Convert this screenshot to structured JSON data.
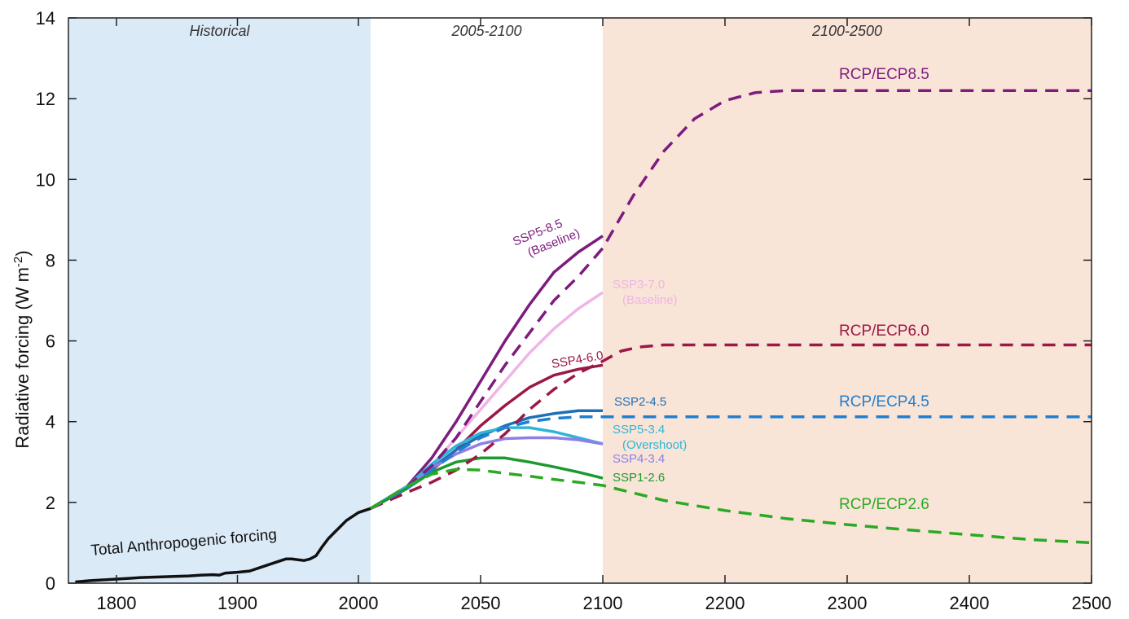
{
  "chart_data": {
    "type": "line",
    "ylabel": "Radiative forcing (W m-2)",
    "ylabel_parts": {
      "main": "Radiative forcing (W m",
      "sup": "-2",
      "close": ")"
    },
    "xlim": [
      1765,
      2500
    ],
    "ylim": [
      0,
      14
    ],
    "x_ticks": [
      "1800",
      "1900",
      "2000",
      "2050",
      "2100",
      "2200",
      "2300",
      "2400",
      "2500"
    ],
    "y_ticks": [
      "0",
      "2",
      "4",
      "6",
      "8",
      "10",
      "12",
      "14"
    ],
    "grid": false,
    "periods": [
      {
        "label": "Historical",
        "x_start": 1765,
        "x_end": 2005,
        "color": "#dbeaf7"
      },
      {
        "label": "2005-2100",
        "x_start": 2005,
        "x_end": 2100,
        "color": "#ffffff"
      },
      {
        "label": "2100-2500",
        "x_start": 2100,
        "x_end": 2500,
        "color": "#f9e4d8"
      }
    ],
    "series": [
      {
        "name": "Total Anthropogenic forcing",
        "style": "solid",
        "color": "#111111",
        "width": 3.5,
        "label_lines": [
          "Total Anthropogenic forcing"
        ],
        "points": [
          [
            1770,
            0.03
          ],
          [
            1780,
            0.06
          ],
          [
            1790,
            0.08
          ],
          [
            1800,
            0.1
          ],
          [
            1810,
            0.12
          ],
          [
            1820,
            0.14
          ],
          [
            1830,
            0.15
          ],
          [
            1840,
            0.16
          ],
          [
            1850,
            0.17
          ],
          [
            1860,
            0.18
          ],
          [
            1870,
            0.2
          ],
          [
            1880,
            0.21
          ],
          [
            1885,
            0.2
          ],
          [
            1890,
            0.25
          ],
          [
            1900,
            0.27
          ],
          [
            1910,
            0.3
          ],
          [
            1920,
            0.4
          ],
          [
            1930,
            0.5
          ],
          [
            1940,
            0.6
          ],
          [
            1945,
            0.6
          ],
          [
            1950,
            0.58
          ],
          [
            1955,
            0.56
          ],
          [
            1960,
            0.6
          ],
          [
            1965,
            0.68
          ],
          [
            1970,
            0.9
          ],
          [
            1975,
            1.1
          ],
          [
            1980,
            1.25
          ],
          [
            1985,
            1.4
          ],
          [
            1990,
            1.55
          ],
          [
            1995,
            1.65
          ],
          [
            2000,
            1.75
          ],
          [
            2005,
            1.85
          ]
        ]
      },
      {
        "name": "SSP5-8.5",
        "style": "solid",
        "color": "#7d1b7e",
        "width": 3.5,
        "label_lines": [
          "SSP5-8.5",
          "(Baseline)"
        ],
        "points": [
          [
            2005,
            1.85
          ],
          [
            2020,
            2.4
          ],
          [
            2030,
            3.1
          ],
          [
            2040,
            4.0
          ],
          [
            2050,
            5.0
          ],
          [
            2060,
            6.0
          ],
          [
            2070,
            6.9
          ],
          [
            2080,
            7.7
          ],
          [
            2090,
            8.2
          ],
          [
            2100,
            8.6
          ]
        ]
      },
      {
        "name": "SSP3-7.0",
        "style": "solid",
        "color": "#f0b4e6",
        "width": 3.5,
        "label_lines": [
          "SSP3-7.0",
          "(Baseline)"
        ],
        "points": [
          [
            2005,
            1.85
          ],
          [
            2020,
            2.35
          ],
          [
            2030,
            2.9
          ],
          [
            2040,
            3.6
          ],
          [
            2050,
            4.3
          ],
          [
            2060,
            5.0
          ],
          [
            2070,
            5.7
          ],
          [
            2080,
            6.3
          ],
          [
            2090,
            6.8
          ],
          [
            2100,
            7.2
          ]
        ]
      },
      {
        "name": "SSP4-6.0",
        "style": "solid",
        "color": "#9c1845",
        "width": 3.5,
        "label_lines": [
          "SSP4-6.0"
        ],
        "points": [
          [
            2005,
            1.85
          ],
          [
            2020,
            2.35
          ],
          [
            2030,
            2.8
          ],
          [
            2040,
            3.3
          ],
          [
            2050,
            3.9
          ],
          [
            2060,
            4.4
          ],
          [
            2070,
            4.85
          ],
          [
            2080,
            5.15
          ],
          [
            2090,
            5.3
          ],
          [
            2100,
            5.4
          ]
        ]
      },
      {
        "name": "SSP2-4.5",
        "style": "solid",
        "color": "#1f6fb6",
        "width": 3.5,
        "label_lines": [
          "SSP2-4.5"
        ],
        "points": [
          [
            2005,
            1.85
          ],
          [
            2020,
            2.35
          ],
          [
            2030,
            2.85
          ],
          [
            2040,
            3.3
          ],
          [
            2050,
            3.65
          ],
          [
            2060,
            3.9
          ],
          [
            2070,
            4.1
          ],
          [
            2080,
            4.2
          ],
          [
            2090,
            4.27
          ],
          [
            2100,
            4.27
          ]
        ]
      },
      {
        "name": "SSP5-3.4",
        "style": "solid",
        "color": "#30b5d6",
        "width": 3.5,
        "label_lines": [
          "SSP5-3.4",
          "(Overshoot)"
        ],
        "points": [
          [
            2005,
            1.85
          ],
          [
            2020,
            2.4
          ],
          [
            2030,
            2.95
          ],
          [
            2040,
            3.4
          ],
          [
            2050,
            3.72
          ],
          [
            2060,
            3.85
          ],
          [
            2070,
            3.85
          ],
          [
            2080,
            3.75
          ],
          [
            2090,
            3.6
          ],
          [
            2100,
            3.45
          ]
        ]
      },
      {
        "name": "SSP4-3.4",
        "style": "solid",
        "color": "#8e7fe6",
        "width": 3.5,
        "label_lines": [
          "SSP4-3.4"
        ],
        "points": [
          [
            2005,
            1.85
          ],
          [
            2020,
            2.35
          ],
          [
            2030,
            2.85
          ],
          [
            2040,
            3.2
          ],
          [
            2050,
            3.45
          ],
          [
            2060,
            3.58
          ],
          [
            2070,
            3.6
          ],
          [
            2080,
            3.6
          ],
          [
            2090,
            3.55
          ],
          [
            2100,
            3.45
          ]
        ]
      },
      {
        "name": "SSP1-2.6",
        "style": "solid",
        "color": "#1c9a2e",
        "width": 3.5,
        "label_lines": [
          "SSP1-2.6"
        ],
        "points": [
          [
            2005,
            1.85
          ],
          [
            2020,
            2.35
          ],
          [
            2030,
            2.75
          ],
          [
            2040,
            3.0
          ],
          [
            2050,
            3.1
          ],
          [
            2060,
            3.1
          ],
          [
            2070,
            3.0
          ],
          [
            2080,
            2.88
          ],
          [
            2090,
            2.75
          ],
          [
            2100,
            2.6
          ]
        ]
      },
      {
        "name": "RCP/ECP8.5",
        "style": "dashed",
        "color": "#7d1b7e",
        "width": 3.5,
        "label_lines": [
          "RCP/ECP8.5"
        ],
        "points": [
          [
            2005,
            1.85
          ],
          [
            2020,
            2.4
          ],
          [
            2030,
            2.9
          ],
          [
            2040,
            3.6
          ],
          [
            2050,
            4.5
          ],
          [
            2060,
            5.4
          ],
          [
            2070,
            6.2
          ],
          [
            2080,
            7.0
          ],
          [
            2090,
            7.6
          ],
          [
            2100,
            8.3
          ],
          [
            2125,
            9.6
          ],
          [
            2150,
            10.7
          ],
          [
            2175,
            11.5
          ],
          [
            2200,
            11.95
          ],
          [
            2225,
            12.15
          ],
          [
            2250,
            12.2
          ],
          [
            2300,
            12.2
          ],
          [
            2400,
            12.2
          ],
          [
            2500,
            12.2
          ]
        ]
      },
      {
        "name": "RCP/ECP6.0",
        "style": "dashed",
        "color": "#9c1845",
        "width": 3.5,
        "label_lines": [
          "RCP/ECP6.0"
        ],
        "points": [
          [
            2005,
            1.85
          ],
          [
            2020,
            2.25
          ],
          [
            2030,
            2.5
          ],
          [
            2040,
            2.8
          ],
          [
            2050,
            3.2
          ],
          [
            2060,
            3.7
          ],
          [
            2070,
            4.3
          ],
          [
            2080,
            4.8
          ],
          [
            2090,
            5.2
          ],
          [
            2100,
            5.5
          ],
          [
            2115,
            5.75
          ],
          [
            2130,
            5.85
          ],
          [
            2150,
            5.9
          ],
          [
            2200,
            5.9
          ],
          [
            2300,
            5.9
          ],
          [
            2400,
            5.9
          ],
          [
            2500,
            5.9
          ]
        ]
      },
      {
        "name": "RCP/ECP4.5",
        "style": "dashed",
        "color": "#1f7fd0",
        "width": 3.5,
        "label_lines": [
          "RCP/ECP4.5"
        ],
        "points": [
          [
            2005,
            1.85
          ],
          [
            2020,
            2.35
          ],
          [
            2030,
            2.8
          ],
          [
            2040,
            3.25
          ],
          [
            2050,
            3.6
          ],
          [
            2060,
            3.85
          ],
          [
            2070,
            4.0
          ],
          [
            2080,
            4.08
          ],
          [
            2090,
            4.12
          ],
          [
            2100,
            4.12
          ],
          [
            2200,
            4.12
          ],
          [
            2300,
            4.12
          ],
          [
            2400,
            4.12
          ],
          [
            2500,
            4.12
          ]
        ]
      },
      {
        "name": "RCP/ECP2.6",
        "style": "dashed",
        "color": "#2aaa23",
        "width": 3.5,
        "label_lines": [
          "RCP/ECP2.6"
        ],
        "points": [
          [
            2005,
            1.85
          ],
          [
            2020,
            2.4
          ],
          [
            2030,
            2.7
          ],
          [
            2040,
            2.82
          ],
          [
            2050,
            2.8
          ],
          [
            2060,
            2.72
          ],
          [
            2070,
            2.65
          ],
          [
            2080,
            2.57
          ],
          [
            2090,
            2.5
          ],
          [
            2100,
            2.42
          ],
          [
            2150,
            2.05
          ],
          [
            2200,
            1.8
          ],
          [
            2250,
            1.6
          ],
          [
            2300,
            1.45
          ],
          [
            2350,
            1.32
          ],
          [
            2400,
            1.2
          ],
          [
            2450,
            1.08
          ],
          [
            2500,
            1.0
          ]
        ]
      }
    ]
  }
}
